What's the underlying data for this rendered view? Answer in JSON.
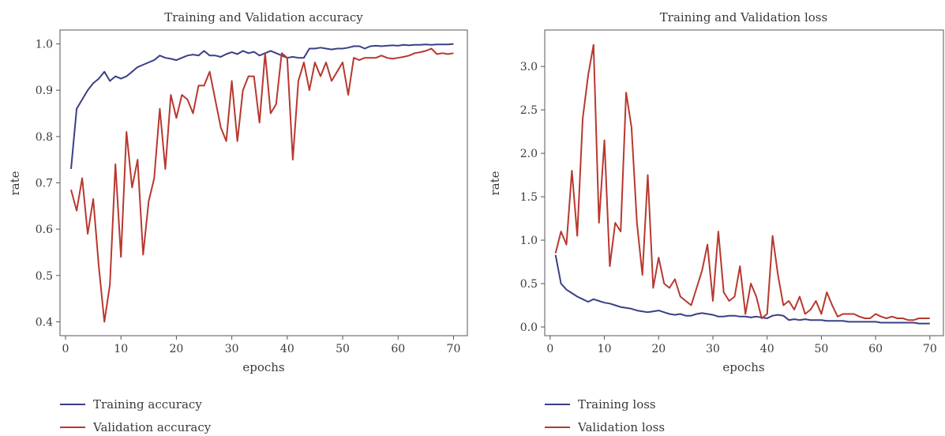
{
  "chart_data": [
    {
      "type": "line",
      "title": "Training and Validation accuracy",
      "xlabel": "epochs",
      "ylabel": "rate",
      "xlim": [
        -1,
        72.5
      ],
      "ylim": [
        0.37,
        1.03
      ],
      "xticks": [
        0,
        10,
        20,
        30,
        40,
        50,
        60,
        70
      ],
      "yticks": [
        0.4,
        0.5,
        0.6,
        0.7,
        0.8,
        0.9,
        1.0
      ],
      "ytick_labels": [
        "0.4",
        "0.5",
        "0.6",
        "0.7",
        "0.8",
        "0.9",
        "1.0"
      ],
      "grid": false,
      "legend_position": "below",
      "series": [
        {
          "name": "Training accuracy",
          "color": "#3b3f86",
          "x": [
            1,
            2,
            3,
            4,
            5,
            6,
            7,
            8,
            9,
            10,
            11,
            12,
            13,
            14,
            15,
            16,
            17,
            18,
            19,
            20,
            21,
            22,
            23,
            24,
            25,
            26,
            27,
            28,
            29,
            30,
            31,
            32,
            33,
            34,
            35,
            36,
            37,
            38,
            39,
            40,
            41,
            42,
            43,
            44,
            45,
            46,
            47,
            48,
            49,
            50,
            51,
            52,
            53,
            54,
            55,
            56,
            57,
            58,
            59,
            60,
            61,
            62,
            63,
            64,
            65,
            66,
            67,
            68,
            69,
            70
          ],
          "y": [
            0.73,
            0.86,
            0.88,
            0.9,
            0.915,
            0.925,
            0.94,
            0.92,
            0.93,
            0.925,
            0.93,
            0.94,
            0.95,
            0.955,
            0.96,
            0.965,
            0.975,
            0.97,
            0.968,
            0.965,
            0.97,
            0.975,
            0.977,
            0.975,
            0.985,
            0.975,
            0.975,
            0.972,
            0.978,
            0.982,
            0.978,
            0.985,
            0.98,
            0.983,
            0.975,
            0.98,
            0.985,
            0.98,
            0.975,
            0.97,
            0.972,
            0.97,
            0.97,
            0.99,
            0.99,
            0.992,
            0.99,
            0.988,
            0.99,
            0.99,
            0.992,
            0.995,
            0.995,
            0.99,
            0.995,
            0.996,
            0.995,
            0.996,
            0.997,
            0.996,
            0.998,
            0.997,
            0.998,
            0.998,
            0.999,
            0.998,
            0.999,
            0.999,
            0.999,
            1.0
          ]
        },
        {
          "name": "Validation accuracy",
          "color": "#b8382f",
          "x": [
            1,
            2,
            3,
            4,
            5,
            6,
            7,
            8,
            9,
            10,
            11,
            12,
            13,
            14,
            15,
            16,
            17,
            18,
            19,
            20,
            21,
            22,
            23,
            24,
            25,
            26,
            27,
            28,
            29,
            30,
            31,
            32,
            33,
            34,
            35,
            36,
            37,
            38,
            39,
            40,
            41,
            42,
            43,
            44,
            45,
            46,
            47,
            48,
            49,
            50,
            51,
            52,
            53,
            54,
            55,
            56,
            57,
            58,
            59,
            60,
            61,
            62,
            63,
            64,
            65,
            66,
            67,
            68,
            69,
            70
          ],
          "y": [
            0.685,
            0.64,
            0.71,
            0.59,
            0.665,
            0.52,
            0.4,
            0.48,
            0.74,
            0.54,
            0.81,
            0.69,
            0.75,
            0.545,
            0.66,
            0.71,
            0.86,
            0.73,
            0.89,
            0.84,
            0.89,
            0.88,
            0.85,
            0.91,
            0.91,
            0.94,
            0.88,
            0.82,
            0.79,
            0.92,
            0.79,
            0.9,
            0.93,
            0.93,
            0.83,
            0.98,
            0.85,
            0.87,
            0.98,
            0.97,
            0.75,
            0.92,
            0.96,
            0.9,
            0.96,
            0.93,
            0.96,
            0.92,
            0.94,
            0.96,
            0.89,
            0.97,
            0.965,
            0.97,
            0.97,
            0.97,
            0.975,
            0.97,
            0.968,
            0.97,
            0.972,
            0.975,
            0.98,
            0.982,
            0.985,
            0.99,
            0.978,
            0.98,
            0.978,
            0.98
          ]
        }
      ]
    },
    {
      "type": "line",
      "title": "Training and Validation loss",
      "xlabel": "epochs",
      "ylabel": "rate",
      "xlim": [
        -1,
        72.5
      ],
      "ylim": [
        -0.1,
        3.42
      ],
      "xticks": [
        0,
        10,
        20,
        30,
        40,
        50,
        60,
        70
      ],
      "yticks": [
        0.0,
        0.5,
        1.0,
        1.5,
        2.0,
        2.5,
        3.0
      ],
      "ytick_labels": [
        "0.0",
        "0.5",
        "1.0",
        "1.5",
        "2.0",
        "2.5",
        "3.0"
      ],
      "grid": false,
      "legend_position": "below",
      "series": [
        {
          "name": "Training loss",
          "color": "#3b3f86",
          "x": [
            1,
            2,
            3,
            4,
            5,
            6,
            7,
            8,
            9,
            10,
            11,
            12,
            13,
            14,
            15,
            16,
            17,
            18,
            19,
            20,
            21,
            22,
            23,
            24,
            25,
            26,
            27,
            28,
            29,
            30,
            31,
            32,
            33,
            34,
            35,
            36,
            37,
            38,
            39,
            40,
            41,
            42,
            43,
            44,
            45,
            46,
            47,
            48,
            49,
            50,
            51,
            52,
            53,
            54,
            55,
            56,
            57,
            58,
            59,
            60,
            61,
            62,
            63,
            64,
            65,
            66,
            67,
            68,
            69,
            70
          ],
          "y": [
            0.83,
            0.5,
            0.43,
            0.39,
            0.35,
            0.32,
            0.29,
            0.32,
            0.3,
            0.28,
            0.27,
            0.25,
            0.23,
            0.22,
            0.21,
            0.19,
            0.18,
            0.17,
            0.18,
            0.19,
            0.17,
            0.15,
            0.14,
            0.15,
            0.13,
            0.13,
            0.15,
            0.16,
            0.15,
            0.14,
            0.12,
            0.12,
            0.13,
            0.13,
            0.12,
            0.12,
            0.11,
            0.12,
            0.11,
            0.1,
            0.13,
            0.14,
            0.13,
            0.08,
            0.09,
            0.08,
            0.09,
            0.08,
            0.08,
            0.08,
            0.07,
            0.07,
            0.07,
            0.07,
            0.06,
            0.06,
            0.06,
            0.06,
            0.06,
            0.06,
            0.05,
            0.05,
            0.05,
            0.05,
            0.05,
            0.05,
            0.05,
            0.04,
            0.04,
            0.04
          ]
        },
        {
          "name": "Validation loss",
          "color": "#b8382f",
          "x": [
            1,
            2,
            3,
            4,
            5,
            6,
            7,
            8,
            9,
            10,
            11,
            12,
            13,
            14,
            15,
            16,
            17,
            18,
            19,
            20,
            21,
            22,
            23,
            24,
            25,
            26,
            27,
            28,
            29,
            30,
            31,
            32,
            33,
            34,
            35,
            36,
            37,
            38,
            39,
            40,
            41,
            42,
            43,
            44,
            45,
            46,
            47,
            48,
            49,
            50,
            51,
            52,
            53,
            54,
            55,
            56,
            57,
            58,
            59,
            60,
            61,
            62,
            63,
            64,
            65,
            66,
            67,
            68,
            69,
            70
          ],
          "y": [
            0.85,
            1.1,
            0.95,
            1.8,
            1.05,
            2.4,
            2.9,
            3.25,
            1.2,
            2.15,
            0.7,
            1.2,
            1.1,
            2.7,
            2.3,
            1.2,
            0.6,
            1.75,
            0.45,
            0.8,
            0.5,
            0.45,
            0.55,
            0.35,
            0.3,
            0.25,
            0.45,
            0.65,
            0.95,
            0.3,
            1.1,
            0.4,
            0.3,
            0.35,
            0.7,
            0.15,
            0.5,
            0.35,
            0.1,
            0.15,
            1.05,
            0.6,
            0.25,
            0.3,
            0.2,
            0.35,
            0.15,
            0.2,
            0.3,
            0.15,
            0.4,
            0.25,
            0.12,
            0.15,
            0.15,
            0.15,
            0.12,
            0.1,
            0.1,
            0.15,
            0.12,
            0.1,
            0.12,
            0.1,
            0.1,
            0.08,
            0.08,
            0.1,
            0.1,
            0.1
          ]
        }
      ]
    }
  ]
}
